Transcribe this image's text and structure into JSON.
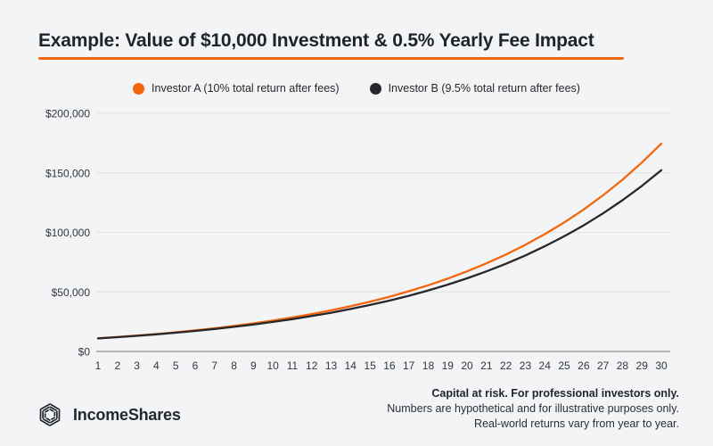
{
  "page": {
    "background_color": "#f3f4f5"
  },
  "header": {
    "title": "Example: Value of $10,000 Investment & 0.5% Yearly Fee Impact",
    "accent_color": "#f4660c"
  },
  "legend": [
    {
      "label": "Investor A (10% total return after fees)",
      "color": "#f4660c"
    },
    {
      "label": "Investor B (9.5% total return after fees)",
      "color": "#26282c"
    }
  ],
  "chart_data": {
    "type": "line",
    "x": [
      1,
      2,
      3,
      4,
      5,
      6,
      7,
      8,
      9,
      10,
      11,
      12,
      13,
      14,
      15,
      16,
      17,
      18,
      19,
      20,
      21,
      22,
      23,
      24,
      25,
      26,
      27,
      28,
      29,
      30
    ],
    "series": [
      {
        "name": "Investor A (10% total return after fees)",
        "color": "#f4660c",
        "values": [
          11000,
          12100,
          13310,
          14641,
          16105,
          17716,
          19487,
          21436,
          23579,
          25937,
          28531,
          31384,
          34523,
          37975,
          41772,
          45950,
          50545,
          55599,
          61159,
          67275,
          74002,
          81403,
          89543,
          98497,
          108347,
          119182,
          131100,
          144210,
          158631,
          174494
        ]
      },
      {
        "name": "Investor B (9.5% total return after fees)",
        "color": "#26282c",
        "values": [
          10950,
          11990,
          13129,
          14377,
          15742,
          17238,
          18876,
          20669,
          22632,
          24782,
          27137,
          29715,
          32538,
          35629,
          39013,
          42719,
          46778,
          51222,
          56088,
          61416,
          67251,
          73640,
          80636,
          88296,
          96684,
          105869,
          115927,
          126940,
          138999,
          152203
        ]
      }
    ],
    "title": "Example: Value of $10,000 Investment & 0.5% Yearly Fee Impact",
    "xlabel": "",
    "ylabel": "",
    "y_ticks": [
      "$0",
      "$50,000",
      "$100,000",
      "$150,000",
      "$200,000"
    ],
    "ylim": [
      0,
      200000
    ],
    "xlim": [
      1,
      30
    ],
    "grid": "horizontal",
    "legend_position": "top-center"
  },
  "footer": {
    "logo_text": "IncomeShares",
    "disclaimer_line1": "Capital at risk. For professional investors only.",
    "disclaimer_line2": "Numbers are hypothetical and for illustrative purposes only.",
    "disclaimer_line3": "Real-world returns vary from year to year."
  }
}
